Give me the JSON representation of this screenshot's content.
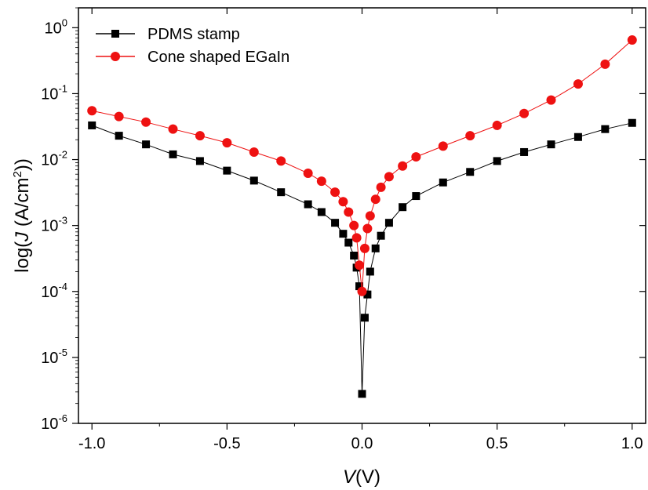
{
  "chart_data": {
    "type": "scatter",
    "x_scale": "linear",
    "y_scale": "log",
    "xlim": [
      -1.05,
      1.05
    ],
    "ylim": [
      1e-06,
      2
    ],
    "xlabel": {
      "italic": "V",
      "rest": "(V)"
    },
    "ylabel": {
      "prefix": "log(",
      "italic": "J",
      "mid": " (A/cm",
      "sup": "2",
      "suffix": "))"
    },
    "x_ticks": [
      {
        "value": -1.0,
        "label": "-1.0"
      },
      {
        "value": -0.5,
        "label": "-0.5"
      },
      {
        "value": 0.0,
        "label": "0.0"
      },
      {
        "value": 0.5,
        "label": "0.5"
      },
      {
        "value": 1.0,
        "label": "1.0"
      }
    ],
    "y_ticks": [
      {
        "value": 1e-06,
        "base": "10",
        "exp": "-6"
      },
      {
        "value": 1e-05,
        "base": "10",
        "exp": "-5"
      },
      {
        "value": 0.0001,
        "base": "10",
        "exp": "-4"
      },
      {
        "value": 0.001,
        "base": "10",
        "exp": "-3"
      },
      {
        "value": 0.01,
        "base": "10",
        "exp": "-2"
      },
      {
        "value": 0.1,
        "base": "10",
        "exp": "-1"
      },
      {
        "value": 1,
        "base": "10",
        "exp": "0"
      }
    ],
    "legend_position": "top-left",
    "series": [
      {
        "name": "PDMS stamp",
        "color": "#000000",
        "marker": "square",
        "x": [
          -1.0,
          -0.9,
          -0.8,
          -0.7,
          -0.6,
          -0.5,
          -0.4,
          -0.3,
          -0.2,
          -0.15,
          -0.1,
          -0.07,
          -0.05,
          -0.03,
          -0.02,
          -0.01,
          0.0,
          0.01,
          0.02,
          0.03,
          0.05,
          0.07,
          0.1,
          0.15,
          0.2,
          0.3,
          0.4,
          0.5,
          0.6,
          0.7,
          0.8,
          0.9,
          1.0
        ],
        "y": [
          0.033,
          0.023,
          0.017,
          0.012,
          0.0095,
          0.0068,
          0.0048,
          0.0032,
          0.0021,
          0.0016,
          0.0011,
          0.00075,
          0.00055,
          0.00035,
          0.00023,
          0.00012,
          2.8e-06,
          4e-05,
          9e-05,
          0.0002,
          0.00045,
          0.0007,
          0.0011,
          0.0019,
          0.0028,
          0.0045,
          0.0065,
          0.0095,
          0.013,
          0.017,
          0.022,
          0.029,
          0.036
        ]
      },
      {
        "name": "Cone shaped EGaIn",
        "color": "#ee1111",
        "marker": "circle",
        "x": [
          -1.0,
          -0.9,
          -0.8,
          -0.7,
          -0.6,
          -0.5,
          -0.4,
          -0.3,
          -0.2,
          -0.15,
          -0.1,
          -0.07,
          -0.05,
          -0.03,
          -0.02,
          -0.01,
          0.0,
          0.01,
          0.02,
          0.03,
          0.05,
          0.07,
          0.1,
          0.15,
          0.2,
          0.3,
          0.4,
          0.5,
          0.6,
          0.7,
          0.8,
          0.9,
          1.0
        ],
        "y": [
          0.055,
          0.045,
          0.037,
          0.029,
          0.023,
          0.018,
          0.013,
          0.0095,
          0.0062,
          0.0047,
          0.0032,
          0.0023,
          0.0016,
          0.001,
          0.00065,
          0.00025,
          0.0001,
          0.00045,
          0.0009,
          0.0014,
          0.0025,
          0.0038,
          0.0055,
          0.008,
          0.011,
          0.016,
          0.023,
          0.033,
          0.05,
          0.08,
          0.14,
          0.28,
          0.65
        ]
      }
    ]
  }
}
